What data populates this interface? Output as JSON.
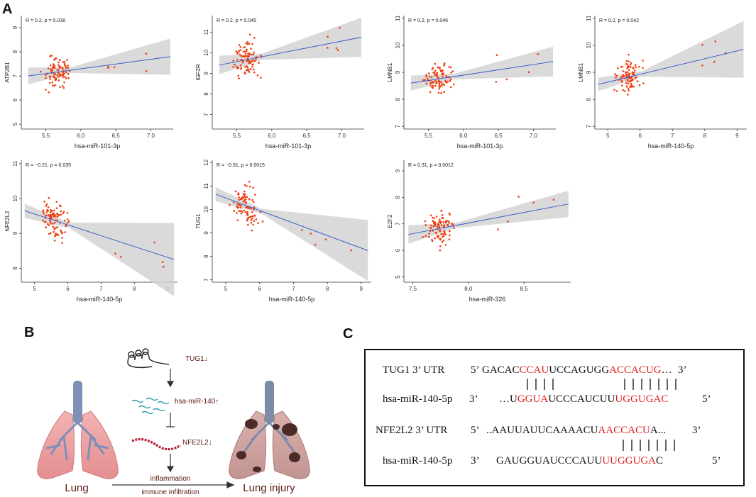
{
  "panels": {
    "a": "A",
    "b": "B",
    "c": "C"
  },
  "colors": {
    "points": "#f03c0f",
    "line": "#3a5fcd",
    "band": "#d3d3d3",
    "seq_red": "#e02020",
    "lung_label": "#5a1a14"
  },
  "chart_data": [
    {
      "type": "scatter",
      "title": "",
      "stat": "R = 0.2, p = 0.038",
      "xlabel": "hsa-miR-101-3p",
      "ylabel": "ATP2B1",
      "xlim": [
        5.15,
        7.32
      ],
      "ylim": [
        4.8,
        9.5
      ],
      "xticks": [
        5.5,
        6.0,
        6.5,
        7.0
      ],
      "xtick_labels": [
        "5.5",
        "6.0",
        "6.5",
        "7.0"
      ],
      "yticks": [
        5,
        6,
        7,
        8,
        9
      ],
      "ytick_labels": [
        "5",
        "6",
        "7",
        "8",
        "9"
      ],
      "fit": {
        "x": [
          5.25,
          7.28
        ],
        "y": [
          7.0,
          7.8
        ]
      },
      "band_half": [
        0.35,
        0.12,
        0.75
      ]
    },
    {
      "type": "scatter",
      "title": "",
      "stat": "R = 0.2, p = 0.045",
      "xlabel": "hsa-miR-101-3p",
      "ylabel": "IGF2R",
      "xlim": [
        5.15,
        7.32
      ],
      "ylim": [
        6.3,
        11.8
      ],
      "xticks": [
        5.5,
        6.0,
        6.5,
        7.0
      ],
      "xtick_labels": [
        "5.5",
        "6.0",
        "6.5",
        "7.0"
      ],
      "yticks": [
        7,
        8,
        9,
        10,
        11
      ],
      "ytick_labels": [
        "7",
        "8",
        "9",
        "10",
        "11"
      ],
      "fit": {
        "x": [
          5.25,
          7.28
        ],
        "y": [
          9.4,
          10.75
        ]
      },
      "band_half": [
        0.45,
        0.15,
        0.95
      ]
    },
    {
      "type": "scatter",
      "title": "",
      "stat": "R = 0.2, p = 0.046",
      "xlabel": "hsa-miR-101-3p",
      "ylabel": "LMNB1",
      "xlim": [
        5.15,
        7.32
      ],
      "ylim": [
        6.9,
        11.1
      ],
      "xticks": [
        5.5,
        6.0,
        6.5,
        7.0
      ],
      "xtick_labels": [
        "5.5",
        "6.0",
        "6.5",
        "7.0"
      ],
      "yticks": [
        7,
        8,
        9,
        10,
        11
      ],
      "ytick_labels": [
        "7",
        "8",
        "9",
        "10",
        "11"
      ],
      "fit": {
        "x": [
          5.25,
          7.28
        ],
        "y": [
          8.6,
          9.4
        ]
      },
      "band_half": [
        0.28,
        0.1,
        0.55
      ]
    },
    {
      "type": "scatter",
      "title": "",
      "stat": "R = 0.2, p = 0.042",
      "xlabel": "hsa-miR-140-5p",
      "ylabel": "LMNB1",
      "xlim": [
        4.6,
        9.3
      ],
      "ylim": [
        6.9,
        11.1
      ],
      "xticks": [
        5,
        6,
        7,
        8,
        9
      ],
      "xtick_labels": [
        "5",
        "6",
        "7",
        "8",
        "9"
      ],
      "yticks": [
        7,
        8,
        9,
        10,
        11
      ],
      "ytick_labels": [
        "7",
        "8",
        "9",
        "10",
        "11"
      ],
      "fit": {
        "x": [
          4.7,
          9.2
        ],
        "y": [
          8.55,
          9.85
        ]
      },
      "band_half": [
        0.25,
        0.1,
        1.05
      ]
    },
    {
      "type": "scatter",
      "title": "",
      "stat": "R = −0.21, p = 0.035",
      "xlabel": "hsa-miR-140-5p",
      "ylabel": "NFE2L2",
      "xlim": [
        4.6,
        9.3
      ],
      "ylim": [
        7.6,
        11.1
      ],
      "xticks": [
        5,
        6,
        7,
        8,
        9
      ],
      "xtick_labels": [
        "5",
        "6",
        "7",
        "8",
        "9"
      ],
      "yticks": [
        8,
        9,
        10,
        11
      ],
      "ytick_labels": [
        "8",
        "9",
        "10",
        "11"
      ],
      "fit": {
        "x": [
          4.7,
          9.2
        ],
        "y": [
          9.65,
          8.25
        ]
      },
      "band_half": [
        0.2,
        0.08,
        1.05
      ]
    },
    {
      "type": "scatter",
      "title": "",
      "stat": "R = −0.31, p = 0.0015",
      "xlabel": "hsa-miR-140-5p",
      "ylabel": "TUG1",
      "xlim": [
        4.6,
        9.3
      ],
      "ylim": [
        6.9,
        12.1
      ],
      "xticks": [
        5,
        6,
        7,
        8,
        9
      ],
      "xtick_labels": [
        "5",
        "6",
        "7",
        "8",
        "9"
      ],
      "yticks": [
        7,
        8,
        9,
        10,
        11,
        12
      ],
      "ytick_labels": [
        "7",
        "8",
        "9",
        "10",
        "11",
        "12"
      ],
      "fit": {
        "x": [
          4.7,
          9.2
        ],
        "y": [
          10.65,
          8.25
        ]
      },
      "band_half": [
        0.3,
        0.1,
        1.3
      ]
    },
    {
      "type": "scatter",
      "title": "",
      "stat": "R = 0.31, p = 0.0012",
      "xlabel": "hsa-miR-326",
      "ylabel": "E2F2",
      "xlim": [
        7.42,
        8.92
      ],
      "ylim": [
        4.8,
        9.4
      ],
      "xticks": [
        7.5,
        8.0,
        8.5
      ],
      "xtick_labels": [
        "7.5",
        "8.0",
        "8.5"
      ],
      "yticks": [
        5,
        6,
        7,
        8,
        9
      ],
      "ytick_labels": [
        "5",
        "6",
        "7",
        "8",
        "9"
      ],
      "fit": {
        "x": [
          7.46,
          8.9
        ],
        "y": [
          6.6,
          7.75
        ]
      },
      "band_half": [
        0.35,
        0.1,
        0.5
      ]
    }
  ],
  "panel_b": {
    "tug1_label": "TUG1↓",
    "mir_label": "hsa-miR-140↑",
    "nfe_label": "NFE2L2↓",
    "inflammation": "inflammation",
    "immune": "immune infiltration",
    "lung": "Lung",
    "lung_injury": "Lung injury"
  },
  "panel_c": {
    "row1_label": "TUG1 3’ UTR",
    "row1_five": "5’",
    "row1_seq": [
      [
        "GACAC",
        "k"
      ],
      [
        "CCAU",
        "r"
      ],
      [
        "UCCAGUGG",
        "k"
      ],
      [
        "ACCACUG",
        "r"
      ],
      [
        "…",
        "k"
      ]
    ],
    "row1_three": "3’",
    "row2_label": "hsa-miR-140-5p",
    "row2_three": "3’",
    "row2_seq": [
      [
        "…U",
        "k"
      ],
      [
        "GGUA",
        "r"
      ],
      [
        "UCCCAUCUU",
        "k"
      ],
      [
        "UGGUGAC",
        "r"
      ]
    ],
    "row2_five": "5’",
    "row3_label": "NFE2L2 3’ UTR",
    "row3_five": "5’",
    "row3_seq": [
      [
        "..AAUUAUUCAAAACU",
        "k"
      ],
      [
        "AACCACU",
        "r"
      ],
      [
        "A...",
        "k"
      ]
    ],
    "row3_three": "3’",
    "row4_label": "hsa-miR-140-5p",
    "row4_three": "3’",
    "row4_seq": [
      [
        "GAUGGUAUCCCAUU",
        "k"
      ],
      [
        "UUGGUGA",
        "r"
      ],
      [
        "C",
        "k"
      ]
    ],
    "row4_five": "5’"
  }
}
